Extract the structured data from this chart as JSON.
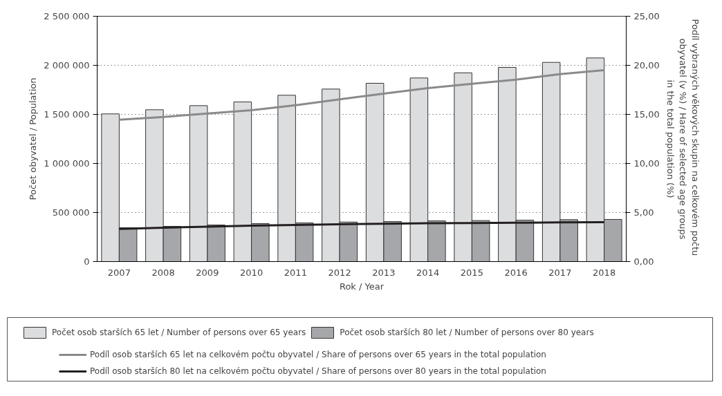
{
  "chart_data": {
    "type": "bar",
    "categories": [
      "2007",
      "2008",
      "2009",
      "2010",
      "2011",
      "2012",
      "2013",
      "2014",
      "2015",
      "2016",
      "2017",
      "2018"
    ],
    "xlabel": "Rok / Year",
    "ylabel": "Počet obyvatel / Population",
    "y2label": "Podíl vybraných věkových skupin  na celkovém počtu\nobyvatel (v %) / Hare of selected age groups\nin the total population (%)",
    "ylim": [
      0,
      2500000
    ],
    "yticks": [
      {
        "value": 0,
        "label": "0"
      },
      {
        "value": 500000,
        "label": "500 000"
      },
      {
        "value": 1000000,
        "label": "1 000 000"
      },
      {
        "value": 1500000,
        "label": "1 500 000"
      },
      {
        "value": 2000000,
        "label": "2 000 000"
      },
      {
        "value": 2500000,
        "label": "2 500 000"
      }
    ],
    "y2lim": [
      0,
      25
    ],
    "y2ticks": [
      {
        "value": 0,
        "label": "0,00"
      },
      {
        "value": 5,
        "label": "5,00"
      },
      {
        "value": 10,
        "label": "10,00"
      },
      {
        "value": 15,
        "label": "15,00"
      },
      {
        "value": 20,
        "label": "20,00"
      },
      {
        "value": 25,
        "label": "25,00"
      }
    ],
    "grid": "y",
    "legend": "bottom",
    "series": [
      {
        "name": "Počet osob starších 65 let / Number of persons over 65 years",
        "color": "#dcdddf",
        "values": [
          1505000,
          1547000,
          1589000,
          1627000,
          1695000,
          1758000,
          1817000,
          1871000,
          1923000,
          1979000,
          2030000,
          2075000
        ]
      },
      {
        "name": "Počet osob starších 80 let / Number of persons over 80 years",
        "color": "#a6a7aa",
        "values": [
          345000,
          359000,
          373000,
          387000,
          394000,
          403000,
          408000,
          415000,
          418000,
          422000,
          427000,
          430000
        ]
      },
      {
        "name": "Podíl osob starších 65 let na celkovém počtu obyvatel / Share of persons over 65 years in the total population",
        "type": "line",
        "axis": "y2",
        "color": "#8a8a8a",
        "values": [
          14.46,
          14.74,
          15.09,
          15.42,
          15.94,
          16.53,
          17.11,
          17.68,
          18.12,
          18.54,
          19.11,
          19.51
        ]
      },
      {
        "name": "Podíl osob starších 80 let na celkovém počtu obyvatel / Share of persons over 80 years in the total population",
        "type": "line",
        "axis": "y2",
        "color": "#231f20",
        "values": [
          3.33,
          3.45,
          3.56,
          3.67,
          3.74,
          3.81,
          3.85,
          3.9,
          3.93,
          3.96,
          3.99,
          4.01
        ]
      }
    ]
  }
}
